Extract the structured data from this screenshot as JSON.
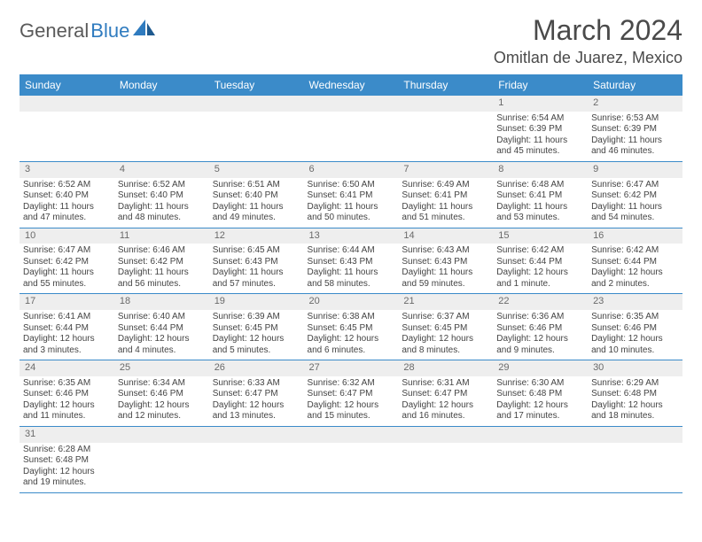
{
  "logo": {
    "part1": "General",
    "part2": "Blue"
  },
  "title": "March 2024",
  "location": "Omitlan de Juarez, Mexico",
  "colors": {
    "header_bg": "#3b8bc9",
    "header_text": "#ffffff",
    "daynum_bg": "#eeeeee",
    "daynum_text": "#6a6a6a",
    "cell_text": "#444444",
    "border": "#3b8bc9",
    "logo_gray": "#5a5a5a",
    "logo_blue": "#2f7bbf"
  },
  "typography": {
    "title_fontsize": 32,
    "location_fontsize": 18,
    "header_fontsize": 12,
    "daynum_fontsize": 11,
    "cell_fontsize": 10
  },
  "weekdays": [
    "Sunday",
    "Monday",
    "Tuesday",
    "Wednesday",
    "Thursday",
    "Friday",
    "Saturday"
  ],
  "weeks": [
    [
      null,
      null,
      null,
      null,
      null,
      {
        "day": "1",
        "sunrise": "Sunrise: 6:54 AM",
        "sunset": "Sunset: 6:39 PM",
        "daylight": "Daylight: 11 hours and 45 minutes."
      },
      {
        "day": "2",
        "sunrise": "Sunrise: 6:53 AM",
        "sunset": "Sunset: 6:39 PM",
        "daylight": "Daylight: 11 hours and 46 minutes."
      }
    ],
    [
      {
        "day": "3",
        "sunrise": "Sunrise: 6:52 AM",
        "sunset": "Sunset: 6:40 PM",
        "daylight": "Daylight: 11 hours and 47 minutes."
      },
      {
        "day": "4",
        "sunrise": "Sunrise: 6:52 AM",
        "sunset": "Sunset: 6:40 PM",
        "daylight": "Daylight: 11 hours and 48 minutes."
      },
      {
        "day": "5",
        "sunrise": "Sunrise: 6:51 AM",
        "sunset": "Sunset: 6:40 PM",
        "daylight": "Daylight: 11 hours and 49 minutes."
      },
      {
        "day": "6",
        "sunrise": "Sunrise: 6:50 AM",
        "sunset": "Sunset: 6:41 PM",
        "daylight": "Daylight: 11 hours and 50 minutes."
      },
      {
        "day": "7",
        "sunrise": "Sunrise: 6:49 AM",
        "sunset": "Sunset: 6:41 PM",
        "daylight": "Daylight: 11 hours and 51 minutes."
      },
      {
        "day": "8",
        "sunrise": "Sunrise: 6:48 AM",
        "sunset": "Sunset: 6:41 PM",
        "daylight": "Daylight: 11 hours and 53 minutes."
      },
      {
        "day": "9",
        "sunrise": "Sunrise: 6:47 AM",
        "sunset": "Sunset: 6:42 PM",
        "daylight": "Daylight: 11 hours and 54 minutes."
      }
    ],
    [
      {
        "day": "10",
        "sunrise": "Sunrise: 6:47 AM",
        "sunset": "Sunset: 6:42 PM",
        "daylight": "Daylight: 11 hours and 55 minutes."
      },
      {
        "day": "11",
        "sunrise": "Sunrise: 6:46 AM",
        "sunset": "Sunset: 6:42 PM",
        "daylight": "Daylight: 11 hours and 56 minutes."
      },
      {
        "day": "12",
        "sunrise": "Sunrise: 6:45 AM",
        "sunset": "Sunset: 6:43 PM",
        "daylight": "Daylight: 11 hours and 57 minutes."
      },
      {
        "day": "13",
        "sunrise": "Sunrise: 6:44 AM",
        "sunset": "Sunset: 6:43 PM",
        "daylight": "Daylight: 11 hours and 58 minutes."
      },
      {
        "day": "14",
        "sunrise": "Sunrise: 6:43 AM",
        "sunset": "Sunset: 6:43 PM",
        "daylight": "Daylight: 11 hours and 59 minutes."
      },
      {
        "day": "15",
        "sunrise": "Sunrise: 6:42 AM",
        "sunset": "Sunset: 6:44 PM",
        "daylight": "Daylight: 12 hours and 1 minute."
      },
      {
        "day": "16",
        "sunrise": "Sunrise: 6:42 AM",
        "sunset": "Sunset: 6:44 PM",
        "daylight": "Daylight: 12 hours and 2 minutes."
      }
    ],
    [
      {
        "day": "17",
        "sunrise": "Sunrise: 6:41 AM",
        "sunset": "Sunset: 6:44 PM",
        "daylight": "Daylight: 12 hours and 3 minutes."
      },
      {
        "day": "18",
        "sunrise": "Sunrise: 6:40 AM",
        "sunset": "Sunset: 6:44 PM",
        "daylight": "Daylight: 12 hours and 4 minutes."
      },
      {
        "day": "19",
        "sunrise": "Sunrise: 6:39 AM",
        "sunset": "Sunset: 6:45 PM",
        "daylight": "Daylight: 12 hours and 5 minutes."
      },
      {
        "day": "20",
        "sunrise": "Sunrise: 6:38 AM",
        "sunset": "Sunset: 6:45 PM",
        "daylight": "Daylight: 12 hours and 6 minutes."
      },
      {
        "day": "21",
        "sunrise": "Sunrise: 6:37 AM",
        "sunset": "Sunset: 6:45 PM",
        "daylight": "Daylight: 12 hours and 8 minutes."
      },
      {
        "day": "22",
        "sunrise": "Sunrise: 6:36 AM",
        "sunset": "Sunset: 6:46 PM",
        "daylight": "Daylight: 12 hours and 9 minutes."
      },
      {
        "day": "23",
        "sunrise": "Sunrise: 6:35 AM",
        "sunset": "Sunset: 6:46 PM",
        "daylight": "Daylight: 12 hours and 10 minutes."
      }
    ],
    [
      {
        "day": "24",
        "sunrise": "Sunrise: 6:35 AM",
        "sunset": "Sunset: 6:46 PM",
        "daylight": "Daylight: 12 hours and 11 minutes."
      },
      {
        "day": "25",
        "sunrise": "Sunrise: 6:34 AM",
        "sunset": "Sunset: 6:46 PM",
        "daylight": "Daylight: 12 hours and 12 minutes."
      },
      {
        "day": "26",
        "sunrise": "Sunrise: 6:33 AM",
        "sunset": "Sunset: 6:47 PM",
        "daylight": "Daylight: 12 hours and 13 minutes."
      },
      {
        "day": "27",
        "sunrise": "Sunrise: 6:32 AM",
        "sunset": "Sunset: 6:47 PM",
        "daylight": "Daylight: 12 hours and 15 minutes."
      },
      {
        "day": "28",
        "sunrise": "Sunrise: 6:31 AM",
        "sunset": "Sunset: 6:47 PM",
        "daylight": "Daylight: 12 hours and 16 minutes."
      },
      {
        "day": "29",
        "sunrise": "Sunrise: 6:30 AM",
        "sunset": "Sunset: 6:48 PM",
        "daylight": "Daylight: 12 hours and 17 minutes."
      },
      {
        "day": "30",
        "sunrise": "Sunrise: 6:29 AM",
        "sunset": "Sunset: 6:48 PM",
        "daylight": "Daylight: 12 hours and 18 minutes."
      }
    ],
    [
      {
        "day": "31",
        "sunrise": "Sunrise: 6:28 AM",
        "sunset": "Sunset: 6:48 PM",
        "daylight": "Daylight: 12 hours and 19 minutes."
      },
      null,
      null,
      null,
      null,
      null,
      null
    ]
  ]
}
